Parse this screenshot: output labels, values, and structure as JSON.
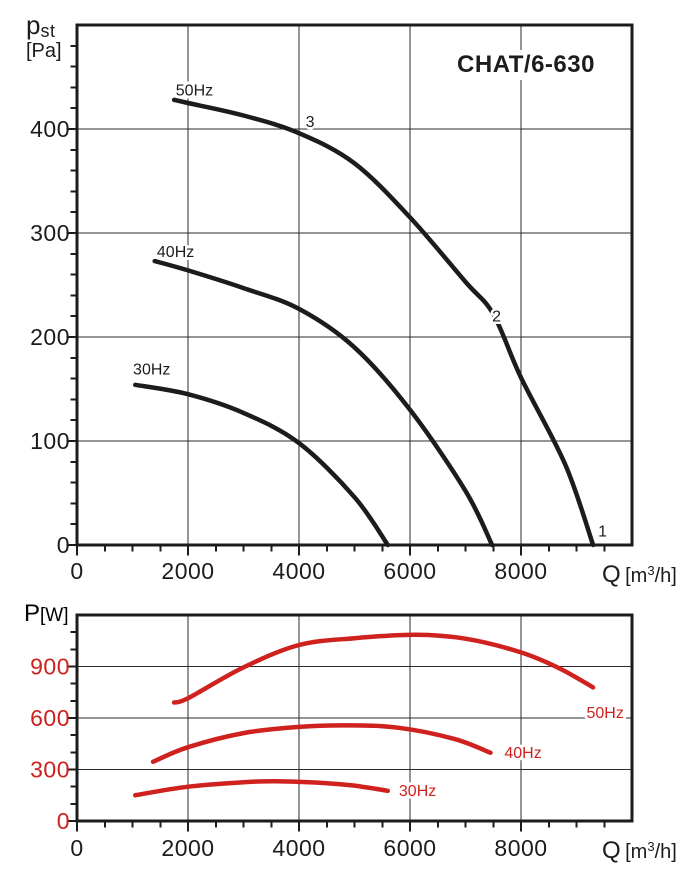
{
  "title": "CHAT/6-630",
  "colors": {
    "black": "#1c1c1c",
    "red": "#cf211e",
    "grid": "#2b2b2b",
    "background": "#ffffff"
  },
  "pressure_axis": {
    "main": "p",
    "sub": "st",
    "unit": "[Pa]"
  },
  "power_axis": {
    "main": "P",
    "unit": "[W]"
  },
  "flow_axis": {
    "main": "Q",
    "b1": "[m",
    "sup": "3",
    "b2": "/h]"
  },
  "chart_data": [
    {
      "type": "line",
      "title": "CHAT/6-630",
      "xlabel": "Q [m3/h]",
      "ylabel": "pst [Pa]",
      "xlim": [
        0,
        10000
      ],
      "ylim": [
        0,
        500
      ],
      "x_ticks": [
        0,
        2000,
        4000,
        6000,
        8000
      ],
      "y_ticks": [
        0,
        100,
        200,
        300,
        400
      ],
      "x_minor_step": 500,
      "y_minor_step": 20,
      "grid": true,
      "legend_position": "on-curve",
      "color": "#1c1c1c",
      "series": [
        {
          "name": "50Hz",
          "points": [
            [
              1750,
              428
            ],
            [
              2000,
              425
            ],
            [
              3000,
              413
            ],
            [
              4000,
              396
            ],
            [
              5000,
              367
            ],
            [
              6000,
              315
            ],
            [
              7000,
              253
            ],
            [
              7500,
              222
            ],
            [
              8000,
              161
            ],
            [
              8800,
              77
            ],
            [
              9300,
              0
            ]
          ],
          "label": {
            "text": "50Hz",
            "x": 1780,
            "y": 432,
            "anchor": "start"
          }
        },
        {
          "name": "40Hz",
          "points": [
            [
              1400,
              273
            ],
            [
              2000,
              264
            ],
            [
              3000,
              247
            ],
            [
              4000,
              227
            ],
            [
              5000,
              190
            ],
            [
              6000,
              130
            ],
            [
              7000,
              52
            ],
            [
              7480,
              0
            ]
          ],
          "label": {
            "text": "40Hz",
            "x": 1440,
            "y": 277,
            "anchor": "start"
          }
        },
        {
          "name": "30Hz",
          "points": [
            [
              1050,
              154
            ],
            [
              2000,
              145
            ],
            [
              3000,
              127
            ],
            [
              4000,
              98
            ],
            [
              5000,
              46
            ],
            [
              5600,
              0
            ]
          ],
          "label": {
            "text": "30Hz",
            "x": 1010,
            "y": 164,
            "anchor": "start"
          }
        }
      ],
      "point_labels": [
        {
          "text": "3",
          "x": 4120,
          "y": 402
        },
        {
          "text": "2",
          "x": 7480,
          "y": 215
        },
        {
          "text": "1",
          "x": 9390,
          "y": 8
        }
      ]
    },
    {
      "type": "line",
      "title": "",
      "xlabel": "Q [m3/h]",
      "ylabel": "P [W]",
      "xlim": [
        0,
        10000
      ],
      "ylim": [
        0,
        1200
      ],
      "x_ticks": [
        0,
        2000,
        4000,
        6000,
        8000
      ],
      "y_ticks": [
        0,
        300,
        600,
        900
      ],
      "x_minor_step": 500,
      "y_minor_step": 100,
      "grid": true,
      "legend_position": "on-curve",
      "color": "#cf211e",
      "series": [
        {
          "name": "50Hz",
          "points": [
            [
              1750,
              690
            ],
            [
              2000,
              715
            ],
            [
              3000,
              895
            ],
            [
              4000,
              1025
            ],
            [
              5000,
              1065
            ],
            [
              6100,
              1085
            ],
            [
              7000,
              1062
            ],
            [
              8000,
              982
            ],
            [
              8700,
              888
            ],
            [
              9300,
              778
            ]
          ],
          "label": {
            "text": "50Hz",
            "x": 9180,
            "y": 600,
            "anchor": "start"
          }
        },
        {
          "name": "40Hz",
          "points": [
            [
              1370,
              345
            ],
            [
              2000,
              430
            ],
            [
              3000,
              512
            ],
            [
              4000,
              548
            ],
            [
              4900,
              557
            ],
            [
              5800,
              543
            ],
            [
              6800,
              478
            ],
            [
              7450,
              398
            ]
          ],
          "label": {
            "text": "40Hz",
            "x": 7700,
            "y": 367,
            "anchor": "start"
          }
        },
        {
          "name": "30Hz",
          "points": [
            [
              1050,
              150
            ],
            [
              2000,
              200
            ],
            [
              3000,
              226
            ],
            [
              3600,
              231
            ],
            [
              4500,
              220
            ],
            [
              5000,
              206
            ],
            [
              5600,
              176
            ]
          ],
          "label": {
            "text": "30Hz",
            "x": 5800,
            "y": 145,
            "anchor": "start"
          }
        }
      ],
      "point_labels": []
    }
  ]
}
